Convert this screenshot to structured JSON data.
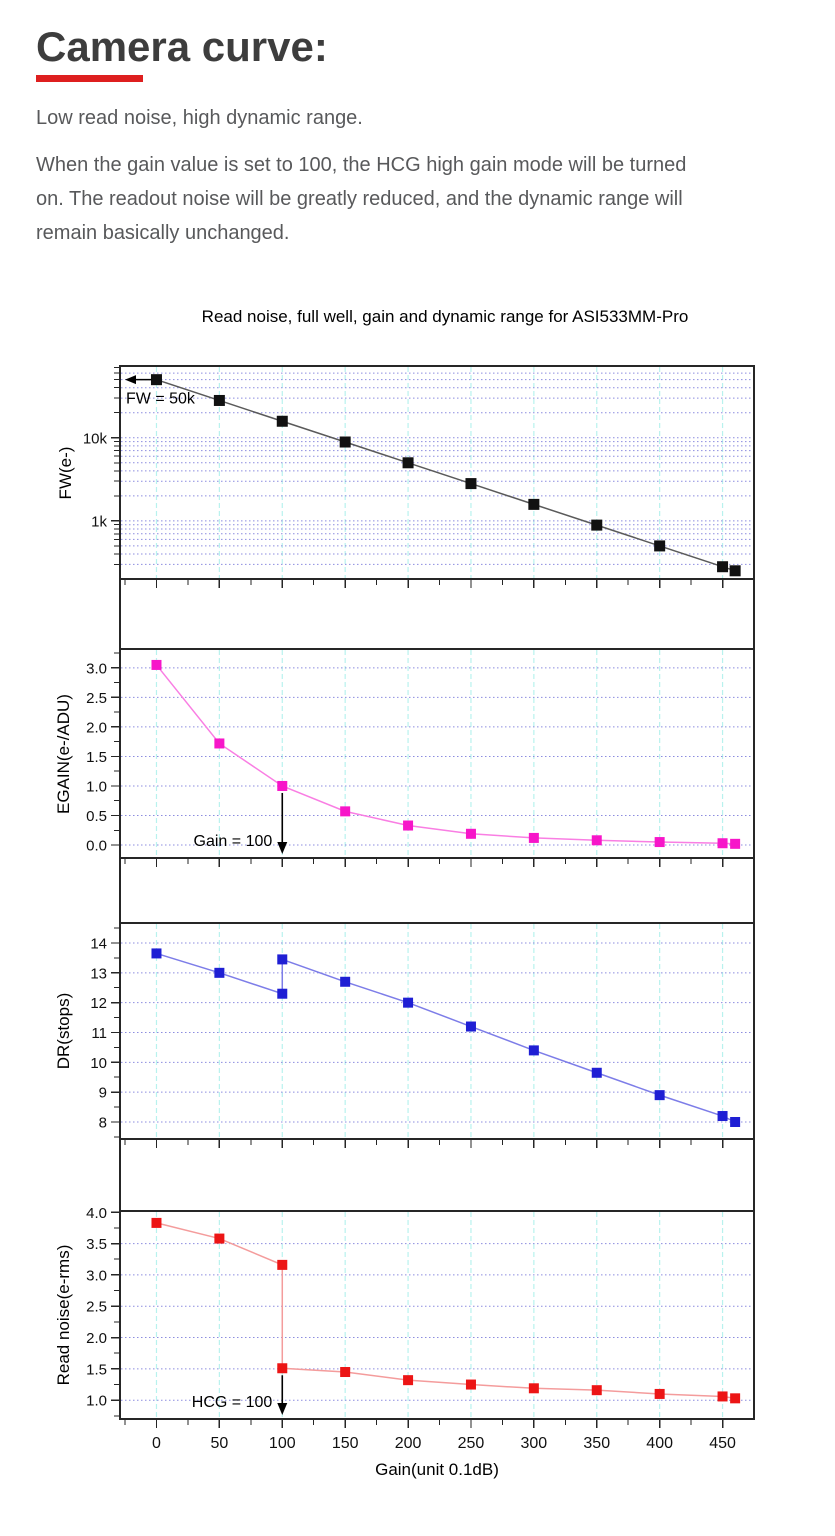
{
  "page": {
    "heading": "Camera curve:",
    "accent_color": "#de1f1f",
    "intro": "Low read noise, high dynamic range.",
    "body_lines": [
      "When the gain value is set to 100, the HCG high gain mode will be turned",
      "on. The readout noise will be greatly reduced, and the dynamic range will",
      "remain basically unchanged."
    ]
  },
  "chart_data": {
    "type": "line",
    "title": "Read noise, full well, gain and dynamic range for ASI533MM-Pro",
    "xlabel": "Gain(unit 0.1dB)",
    "xlim": [
      -29,
      475
    ],
    "x_major_ticks": [
      0,
      50,
      100,
      150,
      200,
      250,
      300,
      350,
      400,
      450
    ],
    "x_tick_labels": [
      "0",
      "50",
      "100",
      "150",
      "200",
      "250",
      "300",
      "350",
      "400",
      "450"
    ],
    "x_minor_step": 25,
    "grid": {
      "h_color": "#8c8cdf",
      "v_color": "#b8f2ee"
    },
    "panels": [
      {
        "name": "full-well",
        "ylabel": "FW(e-)",
        "scale": "log",
        "ylim": [
          200,
          73000
        ],
        "y_major_ticks": [
          {
            "v": 10000,
            "label": "10k"
          },
          {
            "v": 1000,
            "label": "1k"
          }
        ],
        "point_color": "#111111",
        "line_color": "#5a5a5a",
        "x": [
          0,
          50,
          100,
          150,
          200,
          250,
          300,
          350,
          400,
          450,
          460
        ],
        "y": [
          50000,
          28100,
          15800,
          8890,
          5000,
          2810,
          1580,
          890,
          500,
          281,
          251
        ],
        "annotation": {
          "text": "FW = 50k",
          "target_value": 50000,
          "arrow": "left"
        }
      },
      {
        "name": "egain",
        "ylabel": "EGAIN(e-/ADU)",
        "scale": "linear",
        "ylim": [
          -0.22,
          3.32
        ],
        "y_major_ticks": [
          {
            "v": 3.0,
            "label": "3.0"
          },
          {
            "v": 2.5,
            "label": "2.5"
          },
          {
            "v": 2.0,
            "label": "2.0"
          },
          {
            "v": 1.5,
            "label": "1.5"
          },
          {
            "v": 1.0,
            "label": "1.0"
          },
          {
            "v": 0.5,
            "label": "0.5"
          },
          {
            "v": 0.0,
            "label": "0.0"
          }
        ],
        "y_minor_step": 0.25,
        "point_color": "#f716c9",
        "line_color": "#f97ee3",
        "x": [
          0,
          50,
          100,
          150,
          200,
          250,
          300,
          350,
          400,
          450,
          460
        ],
        "y": [
          3.05,
          1.72,
          1.0,
          0.57,
          0.33,
          0.19,
          0.12,
          0.08,
          0.05,
          0.03,
          0.02
        ],
        "annotation": {
          "text": "Gain = 100",
          "target_x": 100,
          "arrow": "down"
        }
      },
      {
        "name": "dynamic-range",
        "ylabel": "DR(stops)",
        "scale": "linear",
        "ylim": [
          7.43,
          14.67
        ],
        "y_major_ticks": [
          {
            "v": 14,
            "label": "14"
          },
          {
            "v": 13,
            "label": "13"
          },
          {
            "v": 12,
            "label": "12"
          },
          {
            "v": 11,
            "label": "11"
          },
          {
            "v": 10,
            "label": "10"
          },
          {
            "v": 9,
            "label": "9"
          },
          {
            "v": 8,
            "label": "8"
          }
        ],
        "y_minor_step": 0.5,
        "point_color": "#1f1fd4",
        "line_color": "#7d7de8",
        "x": [
          0,
          50,
          100,
          100,
          150,
          200,
          250,
          300,
          350,
          400,
          450,
          460
        ],
        "y": [
          13.65,
          13.0,
          12.3,
          13.45,
          12.7,
          12.0,
          11.2,
          10.4,
          9.65,
          8.9,
          8.2,
          8.0
        ]
      },
      {
        "name": "read-noise",
        "ylabel": "Read noise(e-rms)",
        "scale": "linear",
        "ylim": [
          0.7,
          4.02
        ],
        "y_major_ticks": [
          {
            "v": 4.0,
            "label": "4.0"
          },
          {
            "v": 3.5,
            "label": "3.5"
          },
          {
            "v": 3.0,
            "label": "3.0"
          },
          {
            "v": 2.5,
            "label": "2.5"
          },
          {
            "v": 2.0,
            "label": "2.0"
          },
          {
            "v": 1.5,
            "label": "1.5"
          },
          {
            "v": 1.0,
            "label": "1.0"
          }
        ],
        "y_minor_step": 0.25,
        "point_color": "#ec1515",
        "line_color": "#f49c9c",
        "x": [
          0,
          50,
          100,
          100,
          150,
          200,
          250,
          300,
          350,
          400,
          450,
          460
        ],
        "y": [
          3.83,
          3.58,
          3.16,
          1.51,
          1.45,
          1.32,
          1.25,
          1.19,
          1.16,
          1.1,
          1.06,
          1.03
        ],
        "annotation": {
          "text": "HCG = 100",
          "target_x": 100,
          "arrow": "down"
        }
      }
    ]
  }
}
